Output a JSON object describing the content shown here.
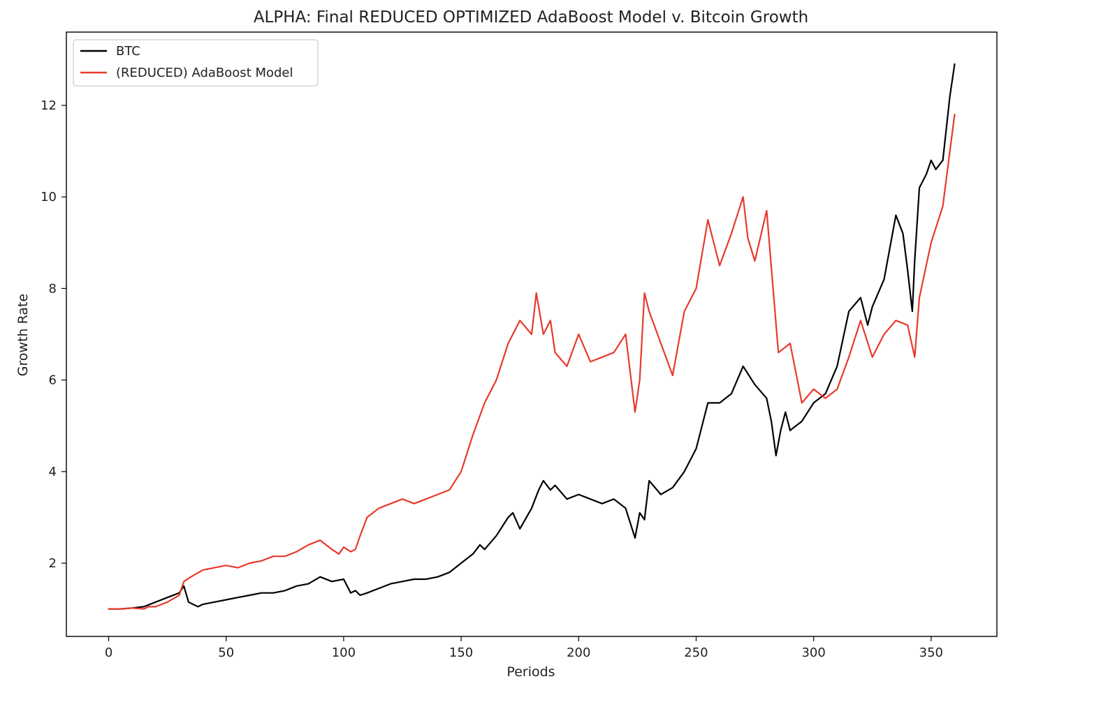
{
  "chart_data": {
    "type": "line",
    "title": "ALPHA: Final REDUCED OPTIMIZED AdaBoost Model v. Bitcoin Growth",
    "xlabel": "Periods",
    "ylabel": "Growth Rate",
    "xlim": [
      -18,
      378
    ],
    "ylim": [
      0.4,
      13.6
    ],
    "xticks": [
      0,
      50,
      100,
      150,
      200,
      250,
      300,
      350
    ],
    "yticks": [
      2,
      4,
      6,
      8,
      10,
      12
    ],
    "grid": false,
    "legend_position": "top-left",
    "series": [
      {
        "name": "BTC",
        "color": "#000000",
        "x": [
          0,
          5,
          10,
          15,
          20,
          25,
          30,
          32,
          34,
          36,
          38,
          40,
          45,
          50,
          55,
          60,
          65,
          70,
          75,
          80,
          85,
          90,
          95,
          100,
          103,
          105,
          107,
          110,
          115,
          120,
          125,
          130,
          135,
          140,
          145,
          150,
          155,
          158,
          160,
          165,
          170,
          172,
          175,
          180,
          183,
          185,
          188,
          190,
          195,
          200,
          205,
          210,
          215,
          220,
          224,
          226,
          228,
          230,
          235,
          240,
          245,
          250,
          255,
          260,
          265,
          270,
          275,
          280,
          282,
          284,
          286,
          288,
          290,
          295,
          300,
          305,
          310,
          315,
          320,
          323,
          325,
          330,
          335,
          338,
          340,
          342,
          343,
          345,
          348,
          350,
          352,
          355,
          358,
          360
        ],
        "y": [
          1.0,
          1.0,
          1.02,
          1.05,
          1.15,
          1.25,
          1.35,
          1.5,
          1.15,
          1.1,
          1.05,
          1.1,
          1.15,
          1.2,
          1.25,
          1.3,
          1.35,
          1.35,
          1.4,
          1.5,
          1.55,
          1.7,
          1.6,
          1.65,
          1.35,
          1.4,
          1.3,
          1.35,
          1.45,
          1.55,
          1.6,
          1.65,
          1.65,
          1.7,
          1.8,
          2.0,
          2.2,
          2.4,
          2.3,
          2.6,
          3.0,
          3.1,
          2.75,
          3.2,
          3.6,
          3.8,
          3.6,
          3.7,
          3.4,
          3.5,
          3.4,
          3.3,
          3.4,
          3.2,
          2.55,
          3.1,
          2.95,
          3.8,
          3.5,
          3.65,
          4.0,
          4.5,
          5.5,
          5.5,
          5.7,
          6.3,
          5.9,
          5.6,
          5.1,
          4.35,
          4.9,
          5.3,
          4.9,
          5.1,
          5.5,
          5.7,
          6.3,
          7.5,
          7.8,
          7.2,
          7.6,
          8.2,
          9.6,
          9.2,
          8.4,
          7.5,
          8.6,
          10.2,
          10.5,
          10.8,
          10.6,
          10.8,
          12.2,
          12.9
        ]
      },
      {
        "name": "(REDUCED) AdaBoost Model",
        "color": "#e8392b",
        "x": [
          0,
          5,
          10,
          15,
          17,
          20,
          25,
          30,
          32,
          35,
          40,
          45,
          50,
          55,
          60,
          65,
          70,
          75,
          80,
          85,
          90,
          95,
          98,
          100,
          103,
          105,
          107,
          110,
          115,
          120,
          125,
          130,
          135,
          140,
          145,
          150,
          155,
          160,
          165,
          170,
          172,
          175,
          180,
          182,
          185,
          188,
          190,
          195,
          200,
          205,
          210,
          215,
          220,
          224,
          226,
          228,
          230,
          235,
          240,
          245,
          250,
          255,
          260,
          265,
          270,
          272,
          275,
          280,
          285,
          290,
          295,
          300,
          305,
          310,
          315,
          320,
          325,
          330,
          335,
          340,
          343,
          345,
          350,
          355,
          358,
          360
        ],
        "y": [
          1.0,
          1.0,
          1.02,
          1.0,
          1.05,
          1.05,
          1.15,
          1.3,
          1.6,
          1.7,
          1.85,
          1.9,
          1.95,
          1.9,
          2.0,
          2.05,
          2.15,
          2.15,
          2.25,
          2.4,
          2.5,
          2.3,
          2.2,
          2.35,
          2.25,
          2.3,
          2.6,
          3.0,
          3.2,
          3.3,
          3.4,
          3.3,
          3.4,
          3.5,
          3.6,
          4.0,
          4.8,
          5.5,
          6.0,
          6.8,
          7.0,
          7.3,
          7.0,
          7.9,
          7.0,
          7.3,
          6.6,
          6.3,
          7.0,
          6.4,
          6.5,
          6.6,
          7.0,
          5.3,
          6.0,
          7.9,
          7.5,
          6.8,
          6.1,
          7.5,
          8.0,
          9.5,
          8.5,
          9.2,
          10.0,
          9.1,
          8.6,
          9.7,
          6.6,
          6.8,
          5.5,
          5.8,
          5.6,
          5.8,
          6.5,
          7.3,
          6.5,
          7.0,
          7.3,
          7.2,
          6.5,
          7.8,
          9.0,
          9.8,
          11.0,
          11.8
        ]
      }
    ]
  }
}
